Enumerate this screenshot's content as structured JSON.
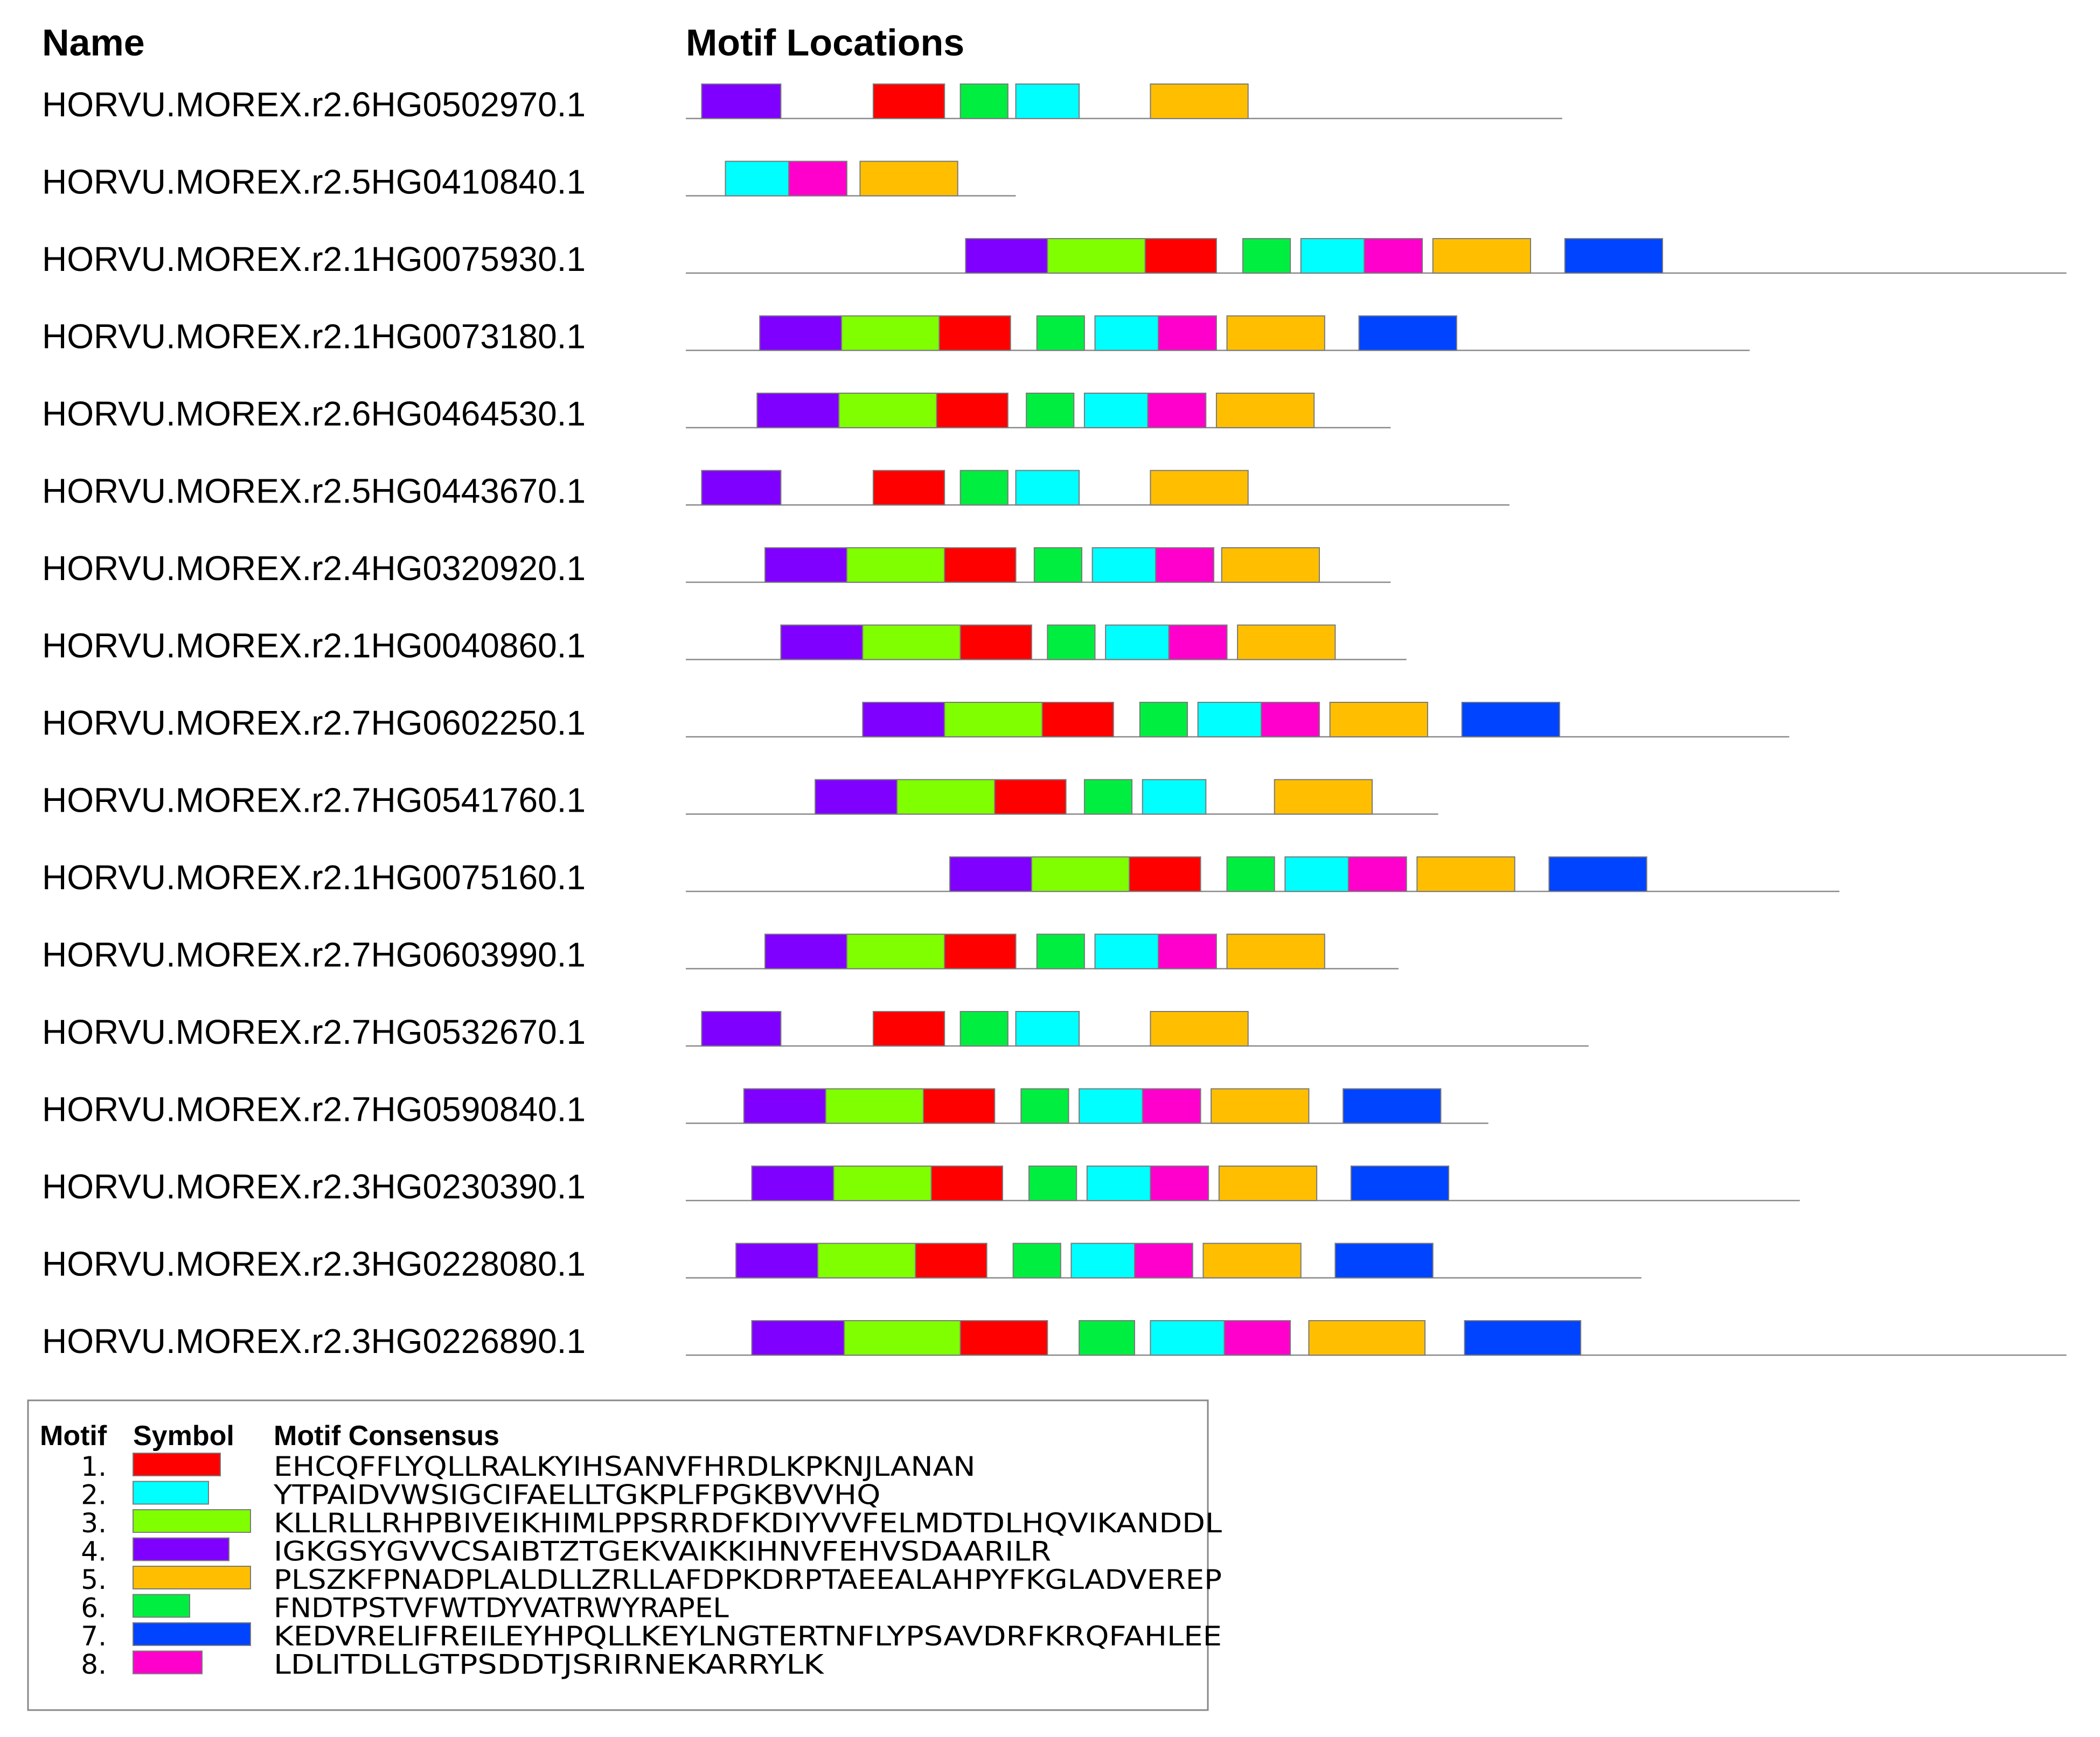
{
  "headers": {
    "name": "Name",
    "locations": "Motif Locations"
  },
  "motifs": [
    {
      "id": 1,
      "label": "1.",
      "color": "#ff0000",
      "consensus": "EHCQFFLYQLLRALKYIHSANVFHRDLKPKNJLANAN"
    },
    {
      "id": 2,
      "label": "2.",
      "color": "#00ffff",
      "consensus": "YTPAIDVWSIGCIFAELLTGKPLFPGKBVVHQ"
    },
    {
      "id": 3,
      "label": "3.",
      "color": "#80ff00",
      "consensus": "KLLRLLRHPBIVEIKHIMLPPSRRDFKDIYVVFELMDTDLHQVIKANDDL"
    },
    {
      "id": 4,
      "label": "4.",
      "color": "#8000ff",
      "consensus": "IGKGSYGVVCSAIBTZTGEKVAIKKIHNVFEHVSDAARILR"
    },
    {
      "id": 5,
      "label": "5.",
      "color": "#ffbf00",
      "consensus": "PLSZKFPNADPLALDLLZRLLAFDPKDRPTAEEALAHPYFKGLADVEREP"
    },
    {
      "id": 6,
      "label": "6.",
      "color": "#00ee40",
      "consensus": "FNDTPSTVFWTDYVATRWYRAPEL"
    },
    {
      "id": 7,
      "label": "7.",
      "color": "#0044ff",
      "consensus": "KEDVRELIFREILEYHPQLLKEYLNGTERTNFLYPSAVDRFKRQFAHLEE"
    },
    {
      "id": 8,
      "label": "8.",
      "color": "#ff00cc",
      "consensus": "LDLITDLLGTPSDDTJSRIRNEKARRYLK"
    }
  ],
  "legend": {
    "motif_header": "Motif",
    "symbol_header": "Symbol",
    "consensus_header": "Motif Consensus"
  },
  "sequences": [
    {
      "name": "HORVU.MOREX.r2.6HG0502970.1",
      "length": 332,
      "motifs": [
        [
          4,
          6,
          36
        ],
        [
          1,
          71,
          98
        ],
        [
          6,
          104,
          122
        ],
        [
          2,
          125,
          149
        ],
        [
          5,
          176,
          213
        ]
      ]
    },
    {
      "name": "HORVU.MOREX.r2.5HG0410840.1",
      "length": 125,
      "motifs": [
        [
          2,
          15,
          39
        ],
        [
          8,
          39,
          61
        ],
        [
          5,
          66,
          103
        ]
      ]
    },
    {
      "name": "HORVU.MOREX.r2.1HG0075930.1",
      "length": 523,
      "motifs": [
        [
          4,
          106,
          137
        ],
        [
          3,
          137,
          174
        ],
        [
          1,
          174,
          201
        ],
        [
          6,
          211,
          229
        ],
        [
          2,
          233,
          257
        ],
        [
          8,
          257,
          279
        ],
        [
          5,
          283,
          320
        ],
        [
          7,
          333,
          370
        ]
      ]
    },
    {
      "name": "HORVU.MOREX.r2.1HG0073180.1",
      "length": 403,
      "motifs": [
        [
          4,
          28,
          59
        ],
        [
          3,
          59,
          96
        ],
        [
          1,
          96,
          123
        ],
        [
          6,
          133,
          151
        ],
        [
          2,
          155,
          179
        ],
        [
          8,
          179,
          201
        ],
        [
          5,
          205,
          242
        ],
        [
          7,
          255,
          292
        ]
      ]
    },
    {
      "name": "HORVU.MOREX.r2.6HG0464530.1",
      "length": 267,
      "motifs": [
        [
          4,
          27,
          58
        ],
        [
          3,
          58,
          95
        ],
        [
          1,
          95,
          122
        ],
        [
          6,
          129,
          147
        ],
        [
          2,
          151,
          175
        ],
        [
          8,
          175,
          197
        ],
        [
          5,
          201,
          238
        ]
      ]
    },
    {
      "name": "HORVU.MOREX.r2.5HG0443670.1",
      "length": 312,
      "motifs": [
        [
          4,
          6,
          36
        ],
        [
          1,
          71,
          98
        ],
        [
          6,
          104,
          122
        ],
        [
          2,
          125,
          149
        ],
        [
          5,
          176,
          213
        ]
      ]
    },
    {
      "name": "HORVU.MOREX.r2.4HG0320920.1",
      "length": 267,
      "motifs": [
        [
          4,
          30,
          61
        ],
        [
          3,
          61,
          98
        ],
        [
          1,
          98,
          125
        ],
        [
          6,
          132,
          150
        ],
        [
          2,
          154,
          178
        ],
        [
          8,
          178,
          200
        ],
        [
          5,
          203,
          240
        ]
      ]
    },
    {
      "name": "HORVU.MOREX.r2.1HG0040860.1",
      "length": 273,
      "motifs": [
        [
          4,
          36,
          67
        ],
        [
          3,
          67,
          104
        ],
        [
          1,
          104,
          131
        ],
        [
          6,
          137,
          155
        ],
        [
          2,
          159,
          183
        ],
        [
          8,
          183,
          205
        ],
        [
          5,
          209,
          246
        ]
      ]
    },
    {
      "name": "HORVU.MOREX.r2.7HG0602250.1",
      "length": 418,
      "motifs": [
        [
          4,
          67,
          98
        ],
        [
          3,
          98,
          135
        ],
        [
          1,
          135,
          162
        ],
        [
          6,
          172,
          190
        ],
        [
          2,
          194,
          218
        ],
        [
          8,
          218,
          240
        ],
        [
          5,
          244,
          281
        ],
        [
          7,
          294,
          331
        ]
      ]
    },
    {
      "name": "HORVU.MOREX.r2.7HG0541760.1",
      "length": 285,
      "motifs": [
        [
          4,
          49,
          80
        ],
        [
          3,
          80,
          117
        ],
        [
          1,
          117,
          144
        ],
        [
          6,
          151,
          169
        ],
        [
          2,
          173,
          197
        ],
        [
          5,
          223,
          260
        ]
      ]
    },
    {
      "name": "HORVU.MOREX.r2.1HG0075160.1",
      "length": 437,
      "motifs": [
        [
          4,
          100,
          131
        ],
        [
          3,
          131,
          168
        ],
        [
          1,
          168,
          195
        ],
        [
          6,
          205,
          223
        ],
        [
          2,
          227,
          251
        ],
        [
          8,
          251,
          273
        ],
        [
          5,
          277,
          314
        ],
        [
          7,
          327,
          364
        ]
      ]
    },
    {
      "name": "HORVU.MOREX.r2.7HG0603990.1",
      "length": 270,
      "motifs": [
        [
          4,
          30,
          61
        ],
        [
          3,
          61,
          98
        ],
        [
          1,
          98,
          125
        ],
        [
          6,
          133,
          151
        ],
        [
          2,
          155,
          179
        ],
        [
          8,
          179,
          201
        ],
        [
          5,
          205,
          242
        ]
      ]
    },
    {
      "name": "HORVU.MOREX.r2.7HG0532670.1",
      "length": 342,
      "motifs": [
        [
          4,
          6,
          36
        ],
        [
          1,
          71,
          98
        ],
        [
          6,
          104,
          122
        ],
        [
          2,
          125,
          149
        ],
        [
          5,
          176,
          213
        ]
      ]
    },
    {
      "name": "HORVU.MOREX.r2.7HG0590840.1",
      "length": 304,
      "motifs": [
        [
          4,
          22,
          53
        ],
        [
          3,
          53,
          90
        ],
        [
          1,
          90,
          117
        ],
        [
          6,
          127,
          145
        ],
        [
          2,
          149,
          173
        ],
        [
          8,
          173,
          195
        ],
        [
          5,
          199,
          236
        ],
        [
          7,
          249,
          286
        ]
      ]
    },
    {
      "name": "HORVU.MOREX.r2.3HG0230390.1",
      "length": 422,
      "motifs": [
        [
          4,
          25,
          56
        ],
        [
          3,
          56,
          93
        ],
        [
          1,
          93,
          120
        ],
        [
          6,
          130,
          148
        ],
        [
          2,
          152,
          176
        ],
        [
          8,
          176,
          198
        ],
        [
          5,
          202,
          239
        ],
        [
          7,
          252,
          289
        ]
      ]
    },
    {
      "name": "HORVU.MOREX.r2.3HG0228080.1",
      "length": 362,
      "motifs": [
        [
          4,
          19,
          50
        ],
        [
          3,
          50,
          87
        ],
        [
          1,
          87,
          114
        ],
        [
          6,
          124,
          142
        ],
        [
          2,
          146,
          170
        ],
        [
          8,
          170,
          192
        ],
        [
          5,
          196,
          233
        ],
        [
          7,
          246,
          283
        ]
      ]
    },
    {
      "name": "HORVU.MOREX.r2.3HG0226890.1",
      "length": 523,
      "motifs": [
        [
          4,
          25,
          60
        ],
        [
          3,
          60,
          104
        ],
        [
          1,
          104,
          137
        ],
        [
          6,
          149,
          170
        ],
        [
          2,
          176,
          204
        ],
        [
          8,
          204,
          229
        ],
        [
          5,
          236,
          280
        ],
        [
          7,
          295,
          339
        ]
      ]
    }
  ]
}
